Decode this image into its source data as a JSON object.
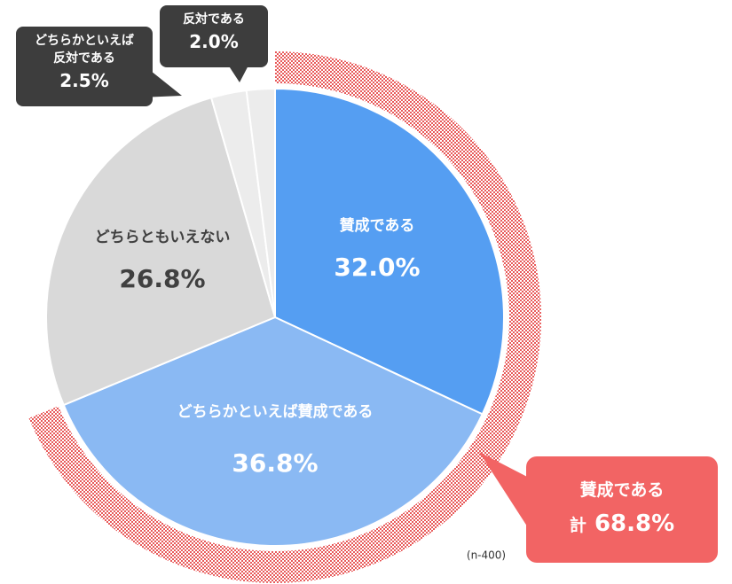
{
  "chart_data": {
    "type": "pie",
    "categories": [
      "賛成である",
      "どちらかといえば賛成である",
      "どちらともいえない",
      "どちらかといえば反対である",
      "反対である"
    ],
    "values": [
      32.0,
      36.8,
      26.8,
      2.5,
      2.0
    ],
    "value_labels": [
      "32.0%",
      "36.8%",
      "26.8%",
      "2.5%",
      "2.0%"
    ],
    "colors": [
      "#559ef2",
      "#8ab9f3",
      "#d9d9d9",
      "#ececec",
      "#ececec"
    ],
    "total": {
      "name": "賛成である",
      "prefix": "計",
      "value": 68.8,
      "value_label": "68.8%",
      "color": "#f26464"
    },
    "note": "(n-400)"
  }
}
